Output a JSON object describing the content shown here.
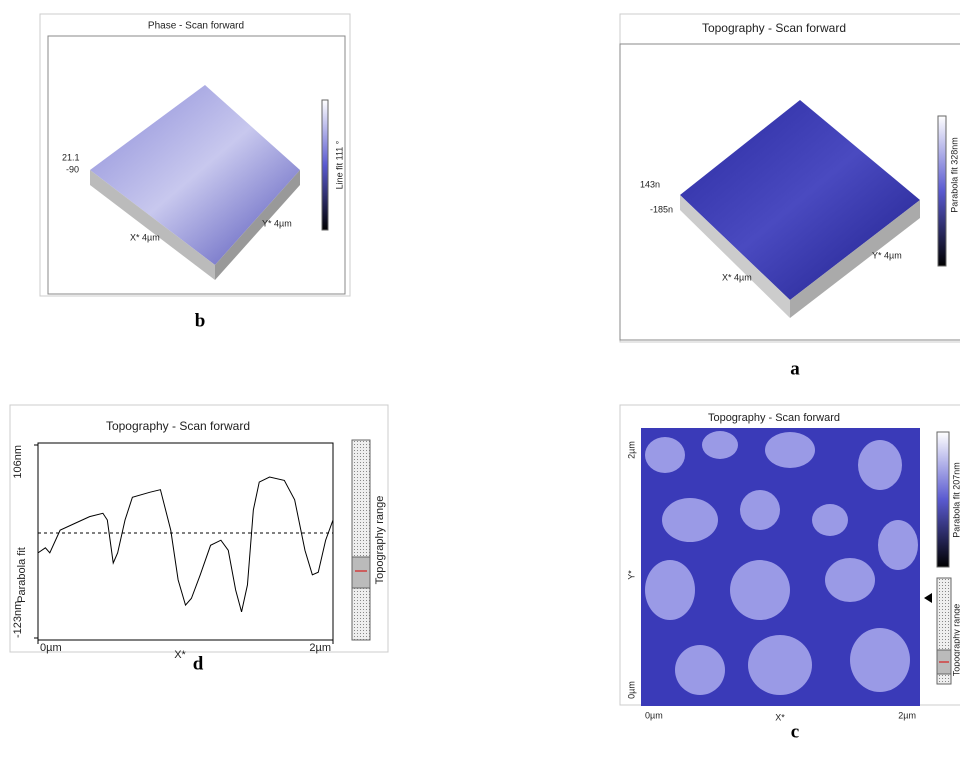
{
  "panels": {
    "b": {
      "title": "Phase - Scan forward",
      "z_top": "21.1",
      "z_bottom": "-90",
      "x_axis": "X* 4µm",
      "y_axis": "Y* 4µm",
      "colorbar": "Line fit 111 °",
      "caption": "b"
    },
    "a": {
      "title": "Topography - Scan forward",
      "z_top": "143n",
      "z_bottom": "-185n",
      "x_axis": "X* 4µm",
      "y_axis": "Y* 4µm",
      "colorbar": "Parabola fit 328nm",
      "caption": "a"
    },
    "d": {
      "title": "Topography - Scan forward",
      "ylabel": "Parabola fit",
      "xlabel": "X*",
      "range_label": "Topography range",
      "caption": "d",
      "xlim": [
        0,
        2
      ],
      "ylim": [
        -123,
        106
      ],
      "xticks": [
        {
          "value": 0,
          "label": "0µm"
        },
        {
          "value": 2,
          "label": "2µm"
        }
      ],
      "yticks": [
        {
          "value": 106,
          "label": "106nm"
        },
        {
          "value": -123,
          "label": "-123nm"
        }
      ],
      "x": [
        0,
        0.05,
        0.08,
        0.15,
        0.25,
        0.35,
        0.44,
        0.47,
        0.51,
        0.54,
        0.59,
        0.64,
        0.76,
        0.83,
        0.9,
        0.95,
        1.0,
        1.04,
        1.1,
        1.17,
        1.24,
        1.29,
        1.34,
        1.38,
        1.42,
        1.46,
        1.5,
        1.57,
        1.67,
        1.74,
        1.81,
        1.86,
        1.9,
        1.95,
        2.0
      ],
      "values": [
        -22,
        -16,
        -22,
        5,
        13,
        21,
        25,
        17,
        -34,
        -22,
        17,
        44,
        50,
        53,
        5,
        -54,
        -84,
        -76,
        -48,
        -13,
        -7,
        -19,
        -66,
        -92,
        -60,
        29,
        62,
        68,
        64,
        41,
        -19,
        -48,
        -45,
        -7,
        17
      ]
    },
    "c": {
      "title": "Topography - Scan forward",
      "y_top": "2µm",
      "y_bottom": "0µm",
      "ylabel": "Y*",
      "x_left": "0µm",
      "xlabel": "X*",
      "x_right": "2µm",
      "colorbar": "Parabola fit 207nm",
      "range_label": "Topography range",
      "caption": "c"
    }
  }
}
